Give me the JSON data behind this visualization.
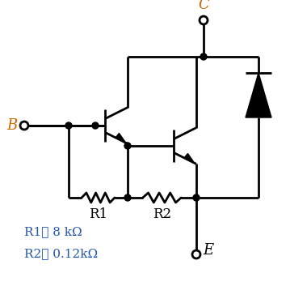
{
  "bg_color": "#ffffff",
  "line_color": "#000000",
  "label_B": "B",
  "label_C": "C",
  "label_E": "E",
  "label_R1": "R1",
  "label_R2": "R2",
  "eq_text1": "R1≅ 8 kΩ",
  "eq_text2": "R2≅ 0.12kΩ",
  "eq_color": "#2255aa",
  "fig_width": 3.59,
  "fig_height": 3.74,
  "dpi": 100
}
